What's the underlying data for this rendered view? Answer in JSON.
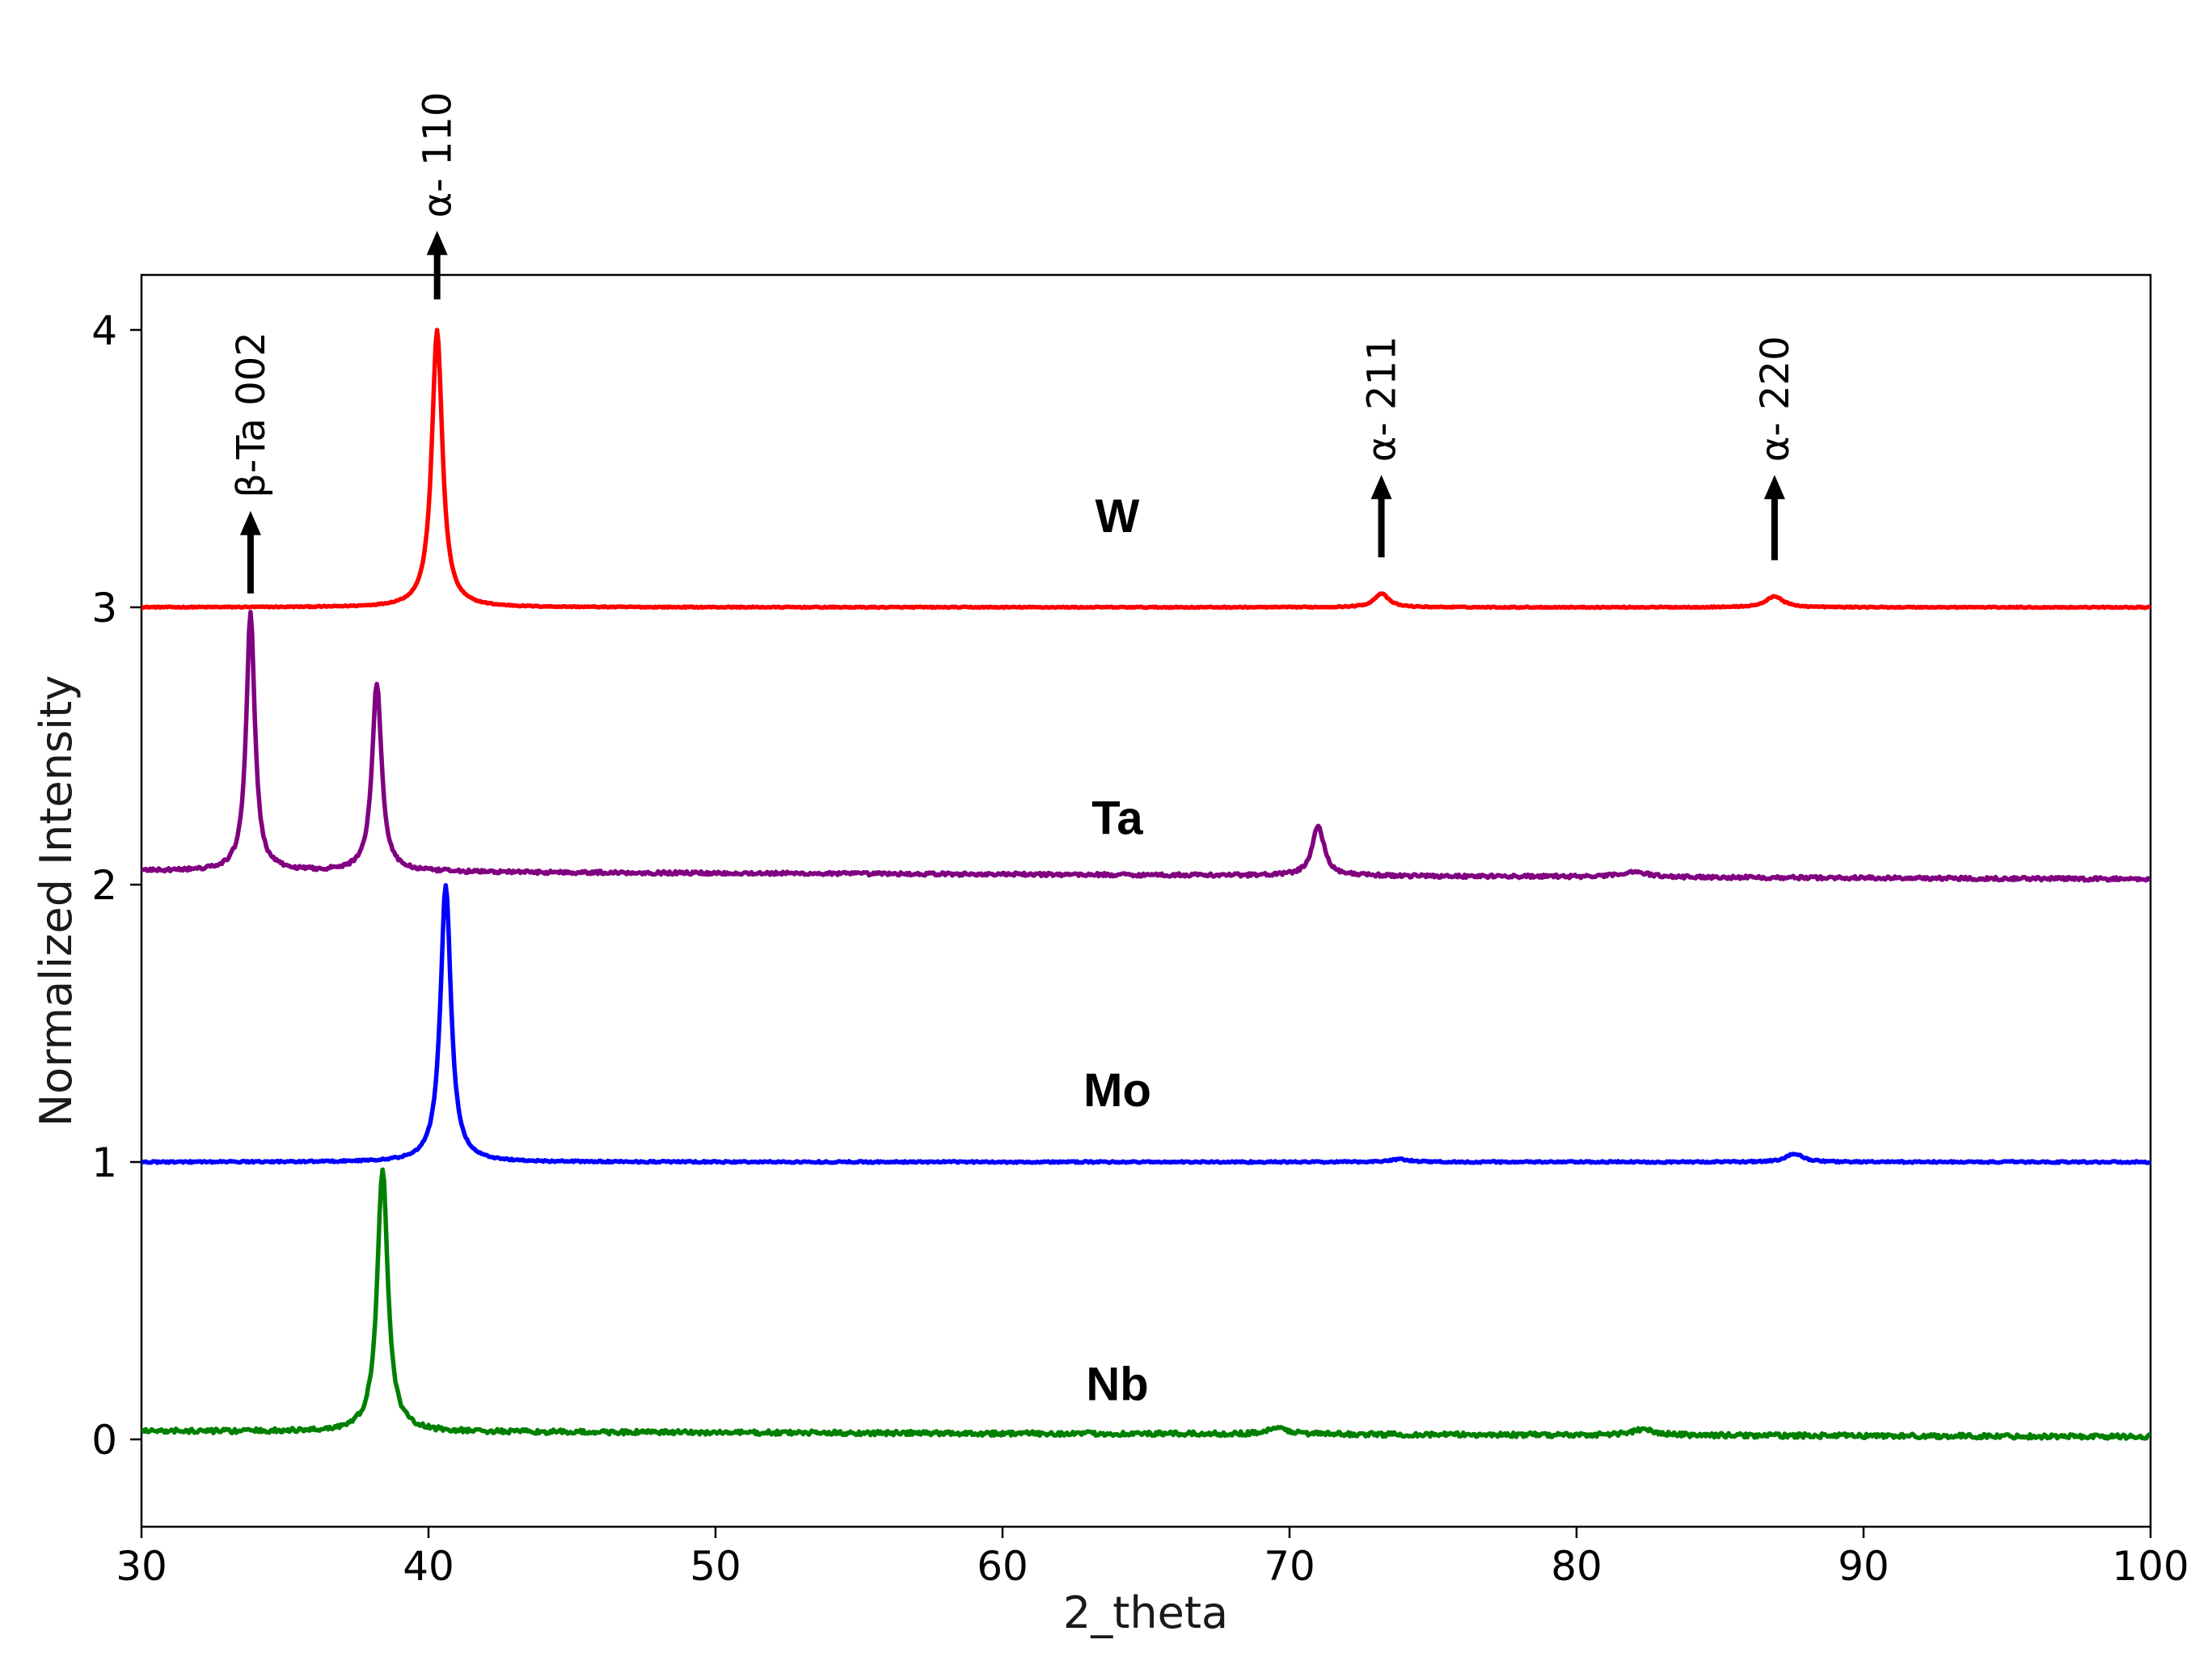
{
  "chart_data": {
    "type": "line",
    "title": "",
    "xlabel": "2_theta",
    "ylabel": "Normalized Intensity",
    "xlim": [
      30,
      100
    ],
    "ylim": [
      -0.3,
      4.2
    ],
    "grid": false,
    "x_ticks": [
      30,
      40,
      50,
      60,
      70,
      80,
      90,
      100
    ],
    "y_ticks": [
      0,
      1,
      2,
      3,
      4
    ],
    "series": [
      {
        "name": "W",
        "color": "#ff0000",
        "offset": 3,
        "baseline": 0.0,
        "noise": 0.002,
        "label_x": 64,
        "label_y": 3.33,
        "peaks": [
          {
            "center": 40.3,
            "height": 1.0,
            "width": 0.22
          },
          {
            "center": 73.2,
            "height": 0.05,
            "width": 0.3
          },
          {
            "center": 86.9,
            "height": 0.04,
            "width": 0.35
          }
        ]
      },
      {
        "name": "Ta",
        "color": "#800080",
        "offset": 2,
        "baseline": 0.05,
        "baseline_end": 0.02,
        "noise": 0.006,
        "label_x": 64,
        "label_y": 2.24,
        "peaks": [
          {
            "center": 33.8,
            "height": 0.93,
            "width": 0.18
          },
          {
            "center": 38.2,
            "height": 0.68,
            "width": 0.2
          },
          {
            "center": 71.0,
            "height": 0.18,
            "width": 0.25
          },
          {
            "center": 82.0,
            "height": 0.02,
            "width": 0.5
          }
        ]
      },
      {
        "name": "Mo",
        "color": "#0000ff",
        "offset": 1,
        "baseline": 0.0,
        "noise": 0.003,
        "label_x": 64,
        "label_y": 1.26,
        "peaks": [
          {
            "center": 40.6,
            "height": 1.0,
            "width": 0.22
          },
          {
            "center": 73.8,
            "height": 0.01,
            "width": 0.4
          },
          {
            "center": 87.6,
            "height": 0.03,
            "width": 0.35
          }
        ]
      },
      {
        "name": "Nb",
        "color": "#008000",
        "offset": 0,
        "baseline": 0.03,
        "baseline_end": 0.01,
        "noise": 0.008,
        "label_x": 64,
        "label_y": 0.2,
        "peaks": [
          {
            "center": 38.4,
            "height": 0.95,
            "width": 0.22
          },
          {
            "center": 69.6,
            "height": 0.02,
            "width": 0.5
          },
          {
            "center": 82.3,
            "height": 0.02,
            "width": 0.5
          }
        ]
      }
    ],
    "annotations": [
      {
        "text": "α- 110",
        "x": 40.3,
        "arrow_from": 4.11,
        "arrow_to": 4.34
      },
      {
        "text": "β-Ta 002",
        "x": 33.8,
        "arrow_from": 3.05,
        "arrow_to": 3.33
      },
      {
        "text": "α- 211",
        "x": 73.2,
        "arrow_from": 3.18,
        "arrow_to": 3.46
      },
      {
        "text": "α- 220",
        "x": 86.9,
        "arrow_from": 3.17,
        "arrow_to": 3.46
      }
    ]
  }
}
